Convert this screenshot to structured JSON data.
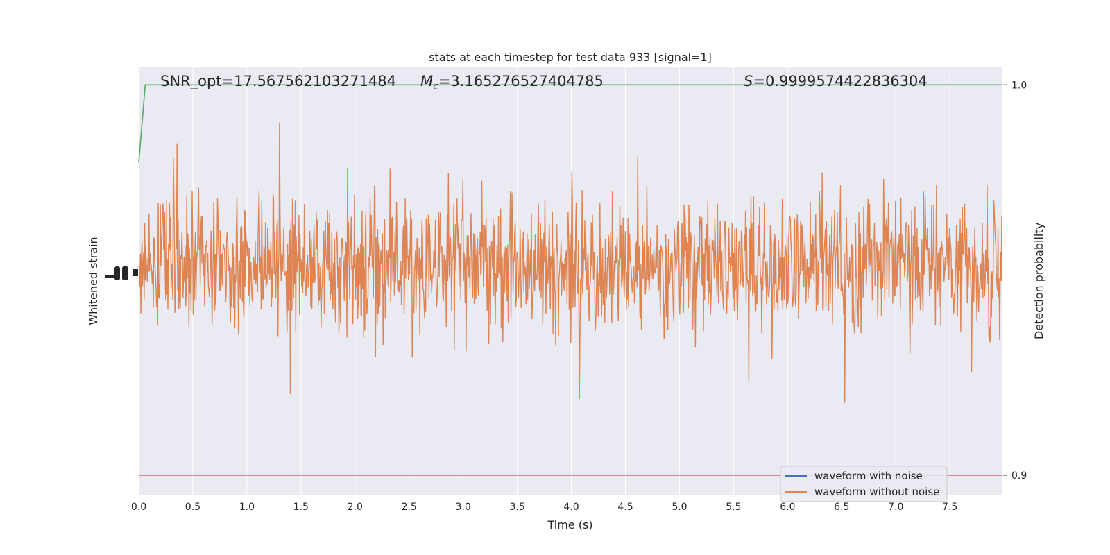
{
  "chart_data": {
    "type": "line",
    "title": "stats at each timestep for test data 933 [signal=1]",
    "xlabel": "Time (s)",
    "ylabel_left": "Whitened strain",
    "ylabel_right": "Detection probability",
    "xlim": [
      0.0,
      7.98
    ],
    "x_ticks": [
      "0.0",
      "0.5",
      "1.0",
      "1.5",
      "2.0",
      "2.5",
      "3.0",
      "3.5",
      "4.0",
      "4.5",
      "5.0",
      "5.5",
      "6.0",
      "6.5",
      "7.0",
      "7.5"
    ],
    "y_right_lim": [
      0.895,
      1.0045
    ],
    "y_right_ticks": [
      "1.0",
      "0.9"
    ],
    "grid": true,
    "background": "#eaeaf2",
    "legend_position": "lower-right",
    "annotations": {
      "snr": "SNR_opt=17.567562103271484",
      "mc_symbol": "M",
      "mc_sub": "c",
      "mc_value": "=3.165276527404785",
      "s_symbol": "S",
      "s_value": "=0.9999574422836304"
    },
    "series": [
      {
        "name": "waveform with noise",
        "color": "#4c72b0"
      },
      {
        "name": "waveform without noise",
        "color": "#dd8452",
        "noise_envelope": {
          "center": 0.0,
          "typical_amplitude": 0.27,
          "max_amplitude": 0.95,
          "samples": 1600
        }
      },
      {
        "color": "#55a868",
        "x": [
          0.0,
          0.06,
          7.98
        ],
        "y": [
          0.98,
          1.0,
          1.0
        ]
      },
      {
        "color": "#c44e52",
        "x": [
          0.0,
          7.98
        ],
        "y": [
          0.9,
          0.9
        ]
      }
    ]
  }
}
